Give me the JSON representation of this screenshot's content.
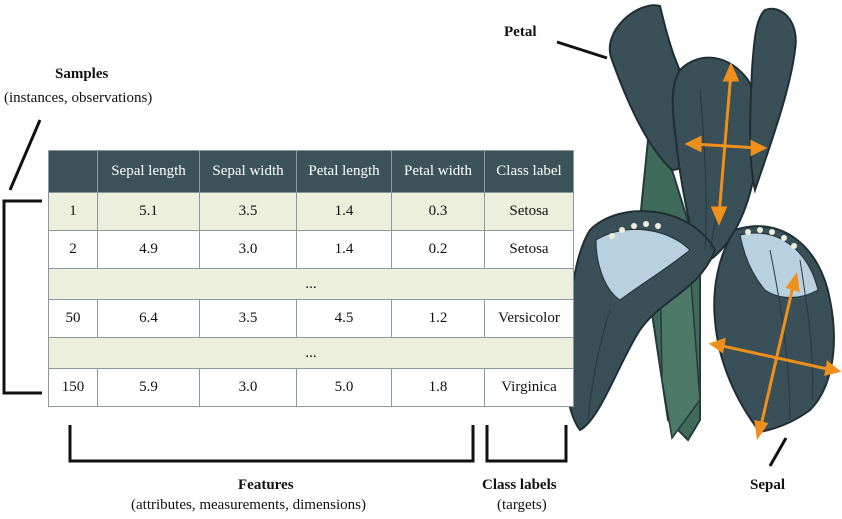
{
  "labels": {
    "samples_title": "Samples",
    "samples_sub": "(instances, observations)",
    "features_title": "Features",
    "features_sub": "(attributes, measurements, dimensions)",
    "class_title": "Class labels",
    "class_sub": "(targets)",
    "petal": "Petal",
    "sepal": "Sepal"
  },
  "table": {
    "headers": [
      "",
      "Sepal length",
      "Sepal width",
      "Petal length",
      "Petal width",
      "Class label"
    ],
    "rows": [
      [
        "1",
        "5.1",
        "3.5",
        "1.4",
        "0.3",
        "Setosa"
      ],
      [
        "2",
        "4.9",
        "3.0",
        "1.4",
        "0.2",
        "Setosa"
      ],
      [
        "50",
        "6.4",
        "3.5",
        "4.5",
        "1.2",
        "Versicolor"
      ],
      [
        "150",
        "5.9",
        "3.0",
        "5.0",
        "1.8",
        "Virginica"
      ]
    ],
    "ellipsis": "..."
  },
  "colors": {
    "header_bg": "#3c5459",
    "row_shade": "#ecefdb",
    "flower_dark": "#3a5058",
    "flower_stem": "#3f6b5a",
    "flower_light": "#b9d0e0",
    "arrow": "#f0901c"
  }
}
